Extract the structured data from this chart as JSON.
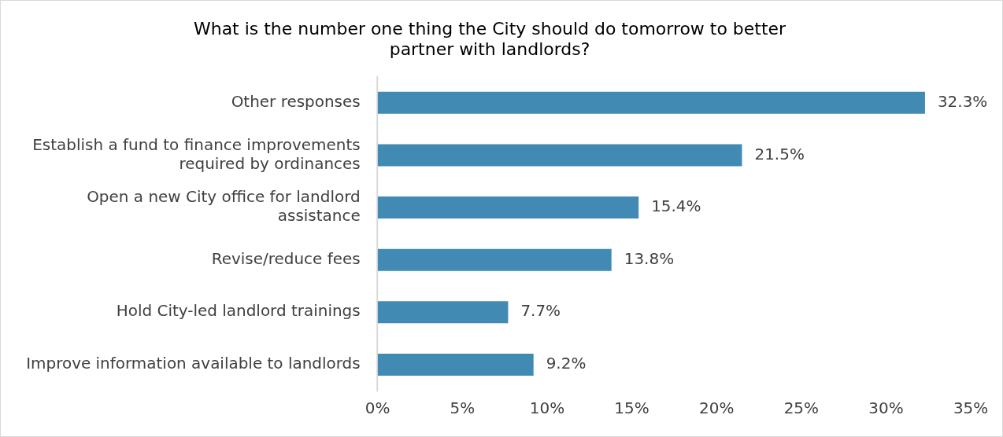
{
  "chart_data": {
    "type": "bar",
    "orientation": "horizontal",
    "title": "What is the number one thing the City should do tomorrow to better partner with landlords?",
    "categories": [
      "Other responses",
      "Establish a fund to finance improvements required by ordinances",
      "Open a new City office for landlord assistance",
      "Revise/reduce fees",
      "Hold City-led landlord trainings",
      "Improve information available to landlords"
    ],
    "values": [
      32.3,
      21.5,
      15.4,
      13.8,
      7.7,
      9.2
    ],
    "value_labels": [
      "32.3%",
      "21.5%",
      "15.4%",
      "13.8%",
      "7.7%",
      "9.2%"
    ],
    "color": "#418ab3",
    "xlim": [
      0,
      35
    ],
    "xticks": [
      {
        "value": 0,
        "label": "0%"
      },
      {
        "value": 5,
        "label": "5%"
      },
      {
        "value": 10,
        "label": "10%"
      },
      {
        "value": 15,
        "label": "15%"
      },
      {
        "value": 20,
        "label": "20%"
      },
      {
        "value": 25,
        "label": "25%"
      },
      {
        "value": 30,
        "label": "30%"
      },
      {
        "value": 35,
        "label": "35%"
      }
    ],
    "grid": false,
    "legend": false
  }
}
